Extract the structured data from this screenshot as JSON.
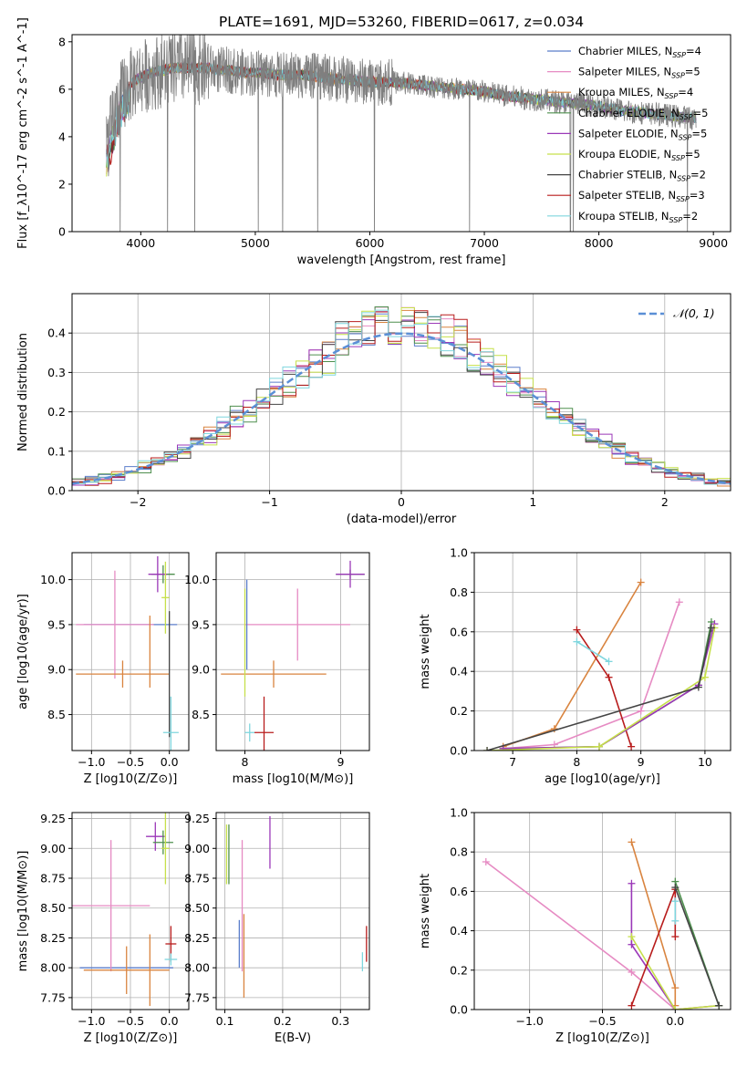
{
  "page": {
    "title": "PLATE=1691, MJD=53260, FIBERID=0617, z=0.034"
  },
  "models": [
    {
      "name": "Chabrier MILES",
      "nssp": "4",
      "color": "#5b7ecb"
    },
    {
      "name": "Salpeter MILES",
      "nssp": "5",
      "color": "#e68bc3"
    },
    {
      "name": "Kroupa MILES",
      "nssp": "4",
      "color": "#d9843f"
    },
    {
      "name": "Chabrier ELODIE",
      "nssp": "5",
      "color": "#4e8f4e"
    },
    {
      "name": "Salpeter ELODIE",
      "nssp": "5",
      "color": "#9b38b8"
    },
    {
      "name": "Kroupa ELODIE",
      "nssp": "5",
      "color": "#c6e04a"
    },
    {
      "name": "Chabrier STELIB",
      "nssp": "2",
      "color": "#444444"
    },
    {
      "name": "Salpeter STELIB",
      "nssp": "3",
      "color": "#b81c1c"
    },
    {
      "name": "Kroupa STELIB",
      "nssp": "2",
      "color": "#7fd6de"
    }
  ],
  "chart_data": [
    {
      "id": "spectrum",
      "type": "line",
      "xlabel": "wavelength [Angstrom, rest frame]",
      "ylabel": "Flux [f_λ10^-17 erg cm^-2 s^-1 A^-1]",
      "xlim": [
        3400,
        9150
      ],
      "ylim": [
        0,
        8.3
      ],
      "xticks": [
        4000,
        5000,
        6000,
        7000,
        8000,
        9000
      ],
      "yticks": [
        0,
        2,
        4,
        6,
        8
      ],
      "data_color": "#7f7f7f",
      "data_x": [
        3700,
        3720,
        3760,
        3800,
        3850,
        3900,
        3950,
        4000,
        4050,
        4100,
        4200,
        4300,
        4400,
        4500,
        4600,
        4700,
        4800,
        4900,
        5000,
        5200,
        5400,
        5600,
        5800,
        6000,
        6200,
        6400,
        6600,
        6800,
        7000,
        7200,
        7400,
        7600,
        7800,
        8000,
        8200,
        8400,
        8600,
        8800,
        8850
      ],
      "data_y": [
        3.7,
        3.9,
        4.6,
        5.3,
        5.9,
        6.1,
        6.4,
        6.5,
        6.6,
        6.7,
        6.8,
        6.9,
        6.9,
        6.9,
        6.9,
        6.8,
        6.8,
        6.7,
        6.7,
        6.6,
        6.6,
        6.5,
        6.4,
        6.3,
        6.3,
        6.2,
        6.1,
        6.0,
        5.9,
        5.7,
        5.6,
        5.5,
        5.4,
        5.3,
        5.1,
        5.0,
        4.9,
        4.8,
        4.8
      ],
      "model_x": [
        3700,
        3760,
        3850,
        3950,
        4050,
        4200,
        4400,
        4600,
        4800,
        5000,
        5300,
        5600,
        6000,
        6400,
        6800,
        7000,
        7200,
        7420
      ],
      "model_y": [
        4.3,
        4.9,
        5.8,
        6.3,
        6.6,
        6.8,
        6.9,
        6.9,
        6.8,
        6.7,
        6.6,
        6.5,
        6.3,
        6.2,
        6.0,
        5.9,
        5.7,
        5.5
      ]
    },
    {
      "id": "residuals",
      "type": "histogram",
      "xlabel": "(data-model)/error",
      "ylabel": "Normed distribution",
      "xlim": [
        -2.5,
        2.5
      ],
      "ylim": [
        0,
        0.5
      ],
      "xticks": [
        -2,
        -1,
        0,
        1,
        2
      ],
      "yticks": [
        0.0,
        0.1,
        0.2,
        0.3,
        0.4
      ],
      "legend": "𝒩(0, 1)",
      "legend_position": "top-right",
      "bin_width": 0.1,
      "bins_start": -2.5,
      "grid": true
    },
    {
      "id": "age-vs-z",
      "type": "errorbar",
      "xlabel": "Z [log10(Z/Z⊙)]",
      "ylabel": "age  [log10(age/yr)]",
      "xlim": [
        -1.25,
        0.25
      ],
      "ylim": [
        8.1,
        10.3
      ],
      "xticks": [
        -1.0,
        -0.5,
        0.0
      ],
      "yticks": [
        8.5,
        9.0,
        9.5,
        10.0
      ],
      "points": [
        {
          "model": 0,
          "x": -0.5,
          "y": 9.5,
          "xerr": 0.6,
          "yerr": 0.0
        },
        {
          "model": 1,
          "x": -0.7,
          "y": 9.5,
          "xerr": 0.5,
          "yerr": 0.6
        },
        {
          "model": 2,
          "x": -0.6,
          "y": 8.95,
          "xerr": 0.6,
          "yerr": 0.15
        },
        {
          "model": 3,
          "x": -0.08,
          "y": 10.06,
          "xerr": 0.15,
          "yerr": 0.1
        },
        {
          "model": 4,
          "x": -0.15,
          "y": 10.06,
          "xerr": 0.12,
          "yerr": 0.2
        },
        {
          "model": 5,
          "x": -0.05,
          "y": 9.8,
          "xerr": 0.05,
          "yerr": 0.4
        },
        {
          "model": 6,
          "x": 0.0,
          "y": 8.95,
          "xerr": 0.0,
          "yerr": 0.7
        },
        {
          "model": 8,
          "x": 0.02,
          "y": 8.3,
          "xerr": 0.1,
          "yerr": 0.4
        },
        {
          "model": 2,
          "x": -0.25,
          "y": 9.2,
          "xerr": 0.0,
          "yerr": 0.4
        }
      ]
    },
    {
      "id": "age-vs-mass",
      "type": "errorbar",
      "xlabel": "mass [log10(M/M⊙)]",
      "ylabel": "",
      "xlim": [
        7.7,
        9.3
      ],
      "ylim": [
        8.1,
        10.3
      ],
      "xticks": [
        8,
        9
      ],
      "yticks": [
        8.5,
        9.0,
        9.5,
        10.0
      ],
      "points": [
        {
          "model": 1,
          "x": 8.55,
          "y": 9.5,
          "xerr": 0.55,
          "yerr": 0.4
        },
        {
          "model": 2,
          "x": 8.3,
          "y": 8.95,
          "xerr": 0.55,
          "yerr": 0.15
        },
        {
          "model": 7,
          "x": 8.2,
          "y": 8.3,
          "xerr": 0.1,
          "yerr": 0.4
        },
        {
          "model": 3,
          "x": 9.1,
          "y": 10.06,
          "xerr": 0.15,
          "yerr": 0.05
        },
        {
          "model": 4,
          "x": 9.1,
          "y": 10.06,
          "xerr": 0.15,
          "yerr": 0.15
        },
        {
          "model": 8,
          "x": 8.05,
          "y": 8.3,
          "xerr": 0.05,
          "yerr": 0.1
        },
        {
          "model": 0,
          "x": 8.02,
          "y": 9.5,
          "xerr": 0.0,
          "yerr": 0.5
        },
        {
          "model": 5,
          "x": 8.0,
          "y": 9.3,
          "xerr": 0.0,
          "yerr": 0.6
        }
      ]
    },
    {
      "id": "massweight-vs-age",
      "type": "line",
      "xlabel": "age  [log10(age/yr)]",
      "ylabel": "mass weight",
      "xlim": [
        6.4,
        10.4
      ],
      "ylim": [
        0,
        1.0
      ],
      "xticks": [
        7,
        8,
        9,
        10
      ],
      "yticks": [
        0.0,
        0.2,
        0.4,
        0.6,
        0.8,
        1.0
      ],
      "series": [
        {
          "model": 2,
          "x": [
            6.85,
            7.65,
            9.0
          ],
          "y": [
            0.02,
            0.11,
            0.85
          ]
        },
        {
          "model": 1,
          "x": [
            6.85,
            7.65,
            9.0,
            9.6
          ],
          "y": [
            0.01,
            0.03,
            0.2,
            0.75
          ]
        },
        {
          "model": 7,
          "x": [
            8.0,
            8.5,
            8.85
          ],
          "y": [
            0.61,
            0.37,
            0.02
          ]
        },
        {
          "model": 8,
          "x": [
            8.0,
            8.5
          ],
          "y": [
            0.55,
            0.45
          ]
        },
        {
          "model": 3,
          "x": [
            6.85,
            8.35,
            9.9,
            10.1
          ],
          "y": [
            0.01,
            0.02,
            0.33,
            0.65
          ]
        },
        {
          "model": 4,
          "x": [
            6.85,
            8.35,
            9.9,
            10.15
          ],
          "y": [
            0.01,
            0.02,
            0.33,
            0.64
          ]
        },
        {
          "model": 5,
          "x": [
            6.6,
            8.35,
            10.0,
            10.15
          ],
          "y": [
            0.0,
            0.02,
            0.37,
            0.62
          ]
        },
        {
          "model": 6,
          "x": [
            6.6,
            9.9,
            10.1
          ],
          "y": [
            0.0,
            0.32,
            0.62
          ]
        }
      ]
    },
    {
      "id": "mass-vs-z",
      "type": "errorbar",
      "xlabel": "Z [log10(Z/Z⊙)]",
      "ylabel": "mass [log10(M/M⊙)]",
      "xlim": [
        -1.25,
        0.25
      ],
      "ylim": [
        7.65,
        9.3
      ],
      "xticks": [
        -1.0,
        -0.5,
        0.0
      ],
      "yticks": [
        7.75,
        8.0,
        8.25,
        8.5,
        8.75,
        9.0,
        9.25
      ],
      "points": [
        {
          "model": 0,
          "x": -0.55,
          "y": 8.0,
          "xerr": 0.6,
          "yerr": 0.0
        },
        {
          "model": 1,
          "x": -0.75,
          "y": 8.52,
          "xerr": 0.5,
          "yerr": 0.55
        },
        {
          "model": 2,
          "x": -0.55,
          "y": 7.98,
          "xerr": 0.55,
          "yerr": 0.2
        },
        {
          "model": 4,
          "x": -0.18,
          "y": 9.1,
          "xerr": 0.12,
          "yerr": 0.12
        },
        {
          "model": 3,
          "x": -0.08,
          "y": 9.05,
          "xerr": 0.13,
          "yerr": 0.1
        },
        {
          "model": 5,
          "x": -0.05,
          "y": 9.0,
          "xerr": 0.05,
          "yerr": 0.3
        },
        {
          "model": 7,
          "x": 0.02,
          "y": 8.2,
          "xerr": 0.07,
          "yerr": 0.15
        },
        {
          "model": 8,
          "x": 0.02,
          "y": 8.07,
          "xerr": 0.08,
          "yerr": 0.05
        },
        {
          "model": 2,
          "x": -0.25,
          "y": 7.98,
          "xerr": 0.0,
          "yerr": 0.3
        }
      ]
    },
    {
      "id": "mass-vs-ebv",
      "type": "errorbar",
      "xlabel": "E(B-V)",
      "ylabel": "",
      "xlim": [
        0.085,
        0.35
      ],
      "ylim": [
        7.65,
        9.3
      ],
      "xticks": [
        0.1,
        0.2,
        0.3
      ],
      "yticks": [
        7.75,
        8.0,
        8.25,
        8.5,
        8.75,
        9.0,
        9.25
      ],
      "points": [
        {
          "model": 0,
          "x": 0.125,
          "y": 8.2,
          "xerr": 0.0,
          "yerr": 0.2
        },
        {
          "model": 1,
          "x": 0.13,
          "y": 8.52,
          "xerr": 0.0,
          "yerr": 0.55
        },
        {
          "model": 2,
          "x": 0.133,
          "y": 8.1,
          "xerr": 0.0,
          "yerr": 0.35
        },
        {
          "model": 3,
          "x": 0.107,
          "y": 8.95,
          "xerr": 0.0,
          "yerr": 0.25
        },
        {
          "model": 4,
          "x": 0.178,
          "y": 9.05,
          "xerr": 0.0,
          "yerr": 0.22
        },
        {
          "model": 5,
          "x": 0.103,
          "y": 8.95,
          "xerr": 0.0,
          "yerr": 0.25
        },
        {
          "model": 7,
          "x": 0.345,
          "y": 8.2,
          "xerr": 0.0,
          "yerr": 0.15
        },
        {
          "model": 8,
          "x": 0.338,
          "y": 8.05,
          "xerr": 0.0,
          "yerr": 0.08
        }
      ]
    },
    {
      "id": "massweight-vs-z",
      "type": "line",
      "xlabel": "Z [log10(Z/Z⊙)]",
      "ylabel": "mass weight",
      "xlim": [
        -1.38,
        0.38
      ],
      "ylim": [
        0,
        1.0
      ],
      "xticks": [
        -1.0,
        -0.5,
        0.0
      ],
      "yticks": [
        0.0,
        0.2,
        0.4,
        0.6,
        0.8,
        1.0
      ],
      "series": [
        {
          "model": 1,
          "x": [
            -1.3,
            -0.3,
            0.0
          ],
          "y": [
            0.75,
            0.19,
            0.0
          ]
        },
        {
          "model": 2,
          "x": [
            -0.3,
            0.0,
            0.0
          ],
          "y": [
            0.85,
            0.11,
            0.02
          ]
        },
        {
          "model": 4,
          "x": [
            -0.3,
            -0.3,
            0.0,
            0.3
          ],
          "y": [
            0.64,
            0.33,
            0.0,
            0.02
          ]
        },
        {
          "model": 5,
          "x": [
            -0.3,
            0.0,
            0.3
          ],
          "y": [
            0.37,
            0.0,
            0.02
          ]
        },
        {
          "model": 7,
          "x": [
            -0.3,
            0.0,
            0.0
          ],
          "y": [
            0.02,
            0.61,
            0.37
          ]
        },
        {
          "model": 3,
          "x": [
            0.0,
            0.3
          ],
          "y": [
            0.65,
            0.02
          ]
        },
        {
          "model": 8,
          "x": [
            0.0,
            0.0
          ],
          "y": [
            0.45,
            0.55
          ]
        },
        {
          "model": 6,
          "x": [
            0.0,
            0.3
          ],
          "y": [
            0.62,
            0.02
          ]
        }
      ]
    }
  ]
}
